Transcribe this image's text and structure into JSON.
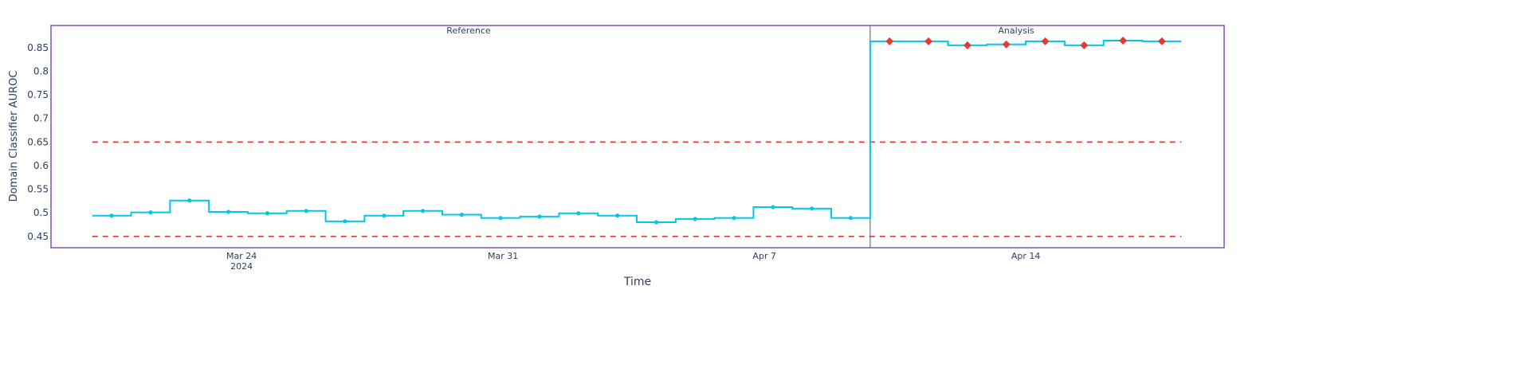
{
  "chart_data": {
    "type": "line",
    "line_shape": "step",
    "xlabel": "Time",
    "ylabel": "Domain Classifier AUROC",
    "x_ticks": [
      {
        "date": "2024-03-24",
        "label": "Mar 24",
        "sublabel": "2024"
      },
      {
        "date": "2024-03-31",
        "label": "Mar 31",
        "sublabel": ""
      },
      {
        "date": "2024-04-07",
        "label": "Apr 7",
        "sublabel": ""
      },
      {
        "date": "2024-04-14",
        "label": "Apr 14",
        "sublabel": ""
      }
    ],
    "y_ticks": [
      0.45,
      0.5,
      0.55,
      0.6,
      0.65,
      0.7,
      0.75,
      0.8,
      0.85
    ],
    "y_tick_labels": [
      "0.45",
      "0.5",
      "0.55",
      "0.6",
      "0.65",
      "0.7",
      "0.75",
      "0.8",
      "0.85"
    ],
    "xlim": [
      "2024-03-18T21:30",
      "2024-04-19T07:30"
    ],
    "ylim": [
      0.426,
      0.897
    ],
    "grid": false,
    "period_labels": {
      "reference": "Reference",
      "analysis": "Analysis"
    },
    "chunk_starts": [
      "2024-03-20T00:00",
      "2024-03-21T01:00",
      "2024-03-22T02:00",
      "2024-03-23T03:00",
      "2024-03-24T04:00",
      "2024-03-25T05:00",
      "2024-03-26T06:00",
      "2024-03-27T07:00",
      "2024-03-28T08:00",
      "2024-03-29T09:00",
      "2024-03-30T10:00",
      "2024-03-31T11:00",
      "2024-04-01T12:00",
      "2024-04-02T13:00",
      "2024-04-03T14:00",
      "2024-04-04T15:00",
      "2024-04-05T16:00",
      "2024-04-06T17:00",
      "2024-04-07T18:00",
      "2024-04-08T19:00",
      "2024-04-09T20:00",
      "2024-04-10T21:00",
      "2024-04-11T22:00",
      "2024-04-12T23:00",
      "2024-04-14T00:00",
      "2024-04-15T01:00",
      "2024-04-16T02:00",
      "2024-04-17T03:00"
    ],
    "last_chunk_end": "2024-04-18T04:00",
    "reference_values": [
      0.494,
      0.501,
      0.526,
      0.502,
      0.499,
      0.504,
      0.482,
      0.494,
      0.504,
      0.496,
      0.489,
      0.492,
      0.499,
      0.494,
      0.48,
      0.487,
      0.489,
      0.512,
      0.509,
      0.489
    ],
    "analysis_values": [
      0.8635,
      0.8635,
      0.855,
      0.857,
      0.8635,
      0.855,
      0.865,
      0.8635
    ],
    "thresholds": {
      "upper": 0.65,
      "lower": 0.45
    },
    "colors": {
      "series": "#00c8e5",
      "alert_marker": "#e53935",
      "threshold": "#e53935",
      "frame": "#6a3d9a",
      "divider": "#555555",
      "text": "#2a3f5f"
    }
  }
}
